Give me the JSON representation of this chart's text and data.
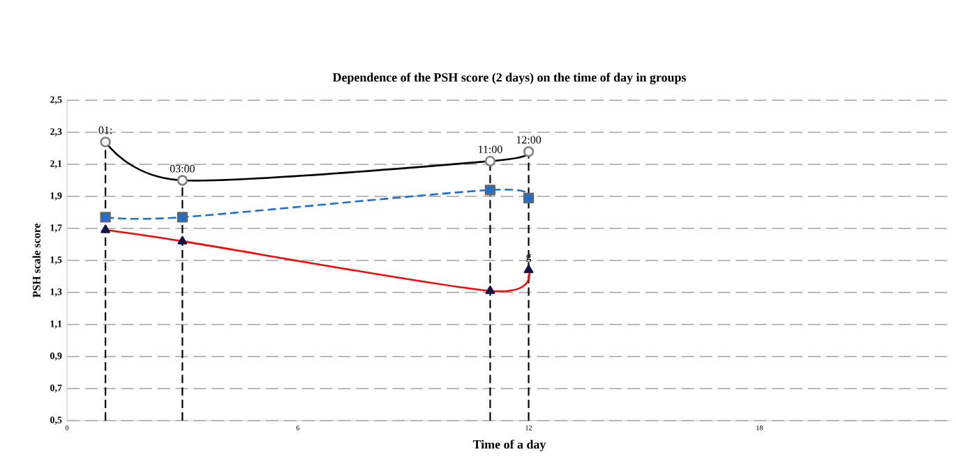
{
  "chart_data": {
    "type": "line",
    "title": "Dependence of the PSH score  (2 days) on the time of day in groups",
    "xlabel": "Time of a day",
    "ylabel": "PSH scale score",
    "xlim": [
      0,
      23
    ],
    "xticks": [
      0,
      6,
      12,
      18
    ],
    "ylim": [
      0.5,
      2.5
    ],
    "yticks": [
      {
        "value": 0.5,
        "label": "0,5"
      },
      {
        "value": 0.7,
        "label": "0,7"
      },
      {
        "value": 0.9,
        "label": "0,9"
      },
      {
        "value": 1.1,
        "label": "1,1"
      },
      {
        "value": 1.3,
        "label": "1,3"
      },
      {
        "value": 1.5,
        "label": "1,5"
      },
      {
        "value": 1.7,
        "label": "1,7"
      },
      {
        "value": 1.9,
        "label": "1,9"
      },
      {
        "value": 2.1,
        "label": "2,1"
      },
      {
        "value": 2.3,
        "label": "2,3"
      },
      {
        "value": 2.5,
        "label": "2,5"
      }
    ],
    "grid": "y",
    "series": [
      {
        "color": "#000000",
        "x": [
          1,
          3,
          11,
          12
        ],
        "values": [
          2.24,
          2.0,
          2.12,
          2.18
        ],
        "marker": "circle",
        "line_style": "solid"
      },
      {
        "color": "#1f6fd0",
        "x": [
          1,
          3,
          11,
          12
        ],
        "values": [
          1.77,
          1.77,
          1.94,
          1.89
        ],
        "marker": "square",
        "line_style": "dashed"
      },
      {
        "color": "#ff0000",
        "x": [
          1,
          3,
          11,
          12
        ],
        "values": [
          1.69,
          1.62,
          1.31,
          1.44
        ],
        "marker": "triangle",
        "line_style": "solid"
      }
    ],
    "ref_lines": [
      {
        "axis": "x",
        "value": 1,
        "line_style": "dashed"
      },
      {
        "axis": "x",
        "value": 3,
        "line_style": "dashed"
      },
      {
        "axis": "x",
        "value": 11,
        "line_style": "dashed"
      },
      {
        "axis": "x",
        "value": 12,
        "line_style": "dashed"
      }
    ],
    "annotations": [
      {
        "text": "01:",
        "x": 1,
        "y": 2.24
      },
      {
        "text": "03:00",
        "x": 3,
        "y": 2.0
      },
      {
        "text": "11:00",
        "x": 11,
        "y": 2.12
      },
      {
        "text": "12:00",
        "x": 12,
        "y": 2.18
      },
      {
        "text": "g",
        "x": 12,
        "y": 1.44
      }
    ]
  }
}
